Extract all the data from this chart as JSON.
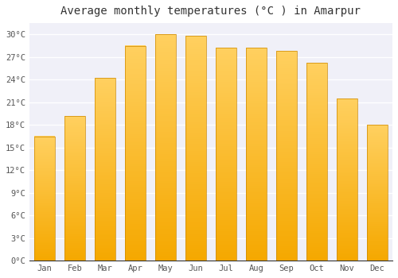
{
  "title": "Average monthly temperatures (°C ) in Amarpur",
  "months": [
    "Jan",
    "Feb",
    "Mar",
    "Apr",
    "May",
    "Jun",
    "Jul",
    "Aug",
    "Sep",
    "Oct",
    "Nov",
    "Dec"
  ],
  "values": [
    16.5,
    19.2,
    24.2,
    28.5,
    30.0,
    29.8,
    28.2,
    28.2,
    27.8,
    26.2,
    21.5,
    18.0
  ],
  "bar_color": "#FFA500",
  "bar_color_light": "#FFD040",
  "bar_edge_color": "#CC8800",
  "ylim": [
    0,
    31.5
  ],
  "yticks": [
    0,
    3,
    6,
    9,
    12,
    15,
    18,
    21,
    24,
    27,
    30
  ],
  "background_color": "#ffffff",
  "plot_bg_color": "#f0f0f8",
  "grid_color": "#ffffff",
  "title_fontsize": 10,
  "tick_fontsize": 7.5,
  "font_color": "#555555",
  "title_color": "#333333"
}
